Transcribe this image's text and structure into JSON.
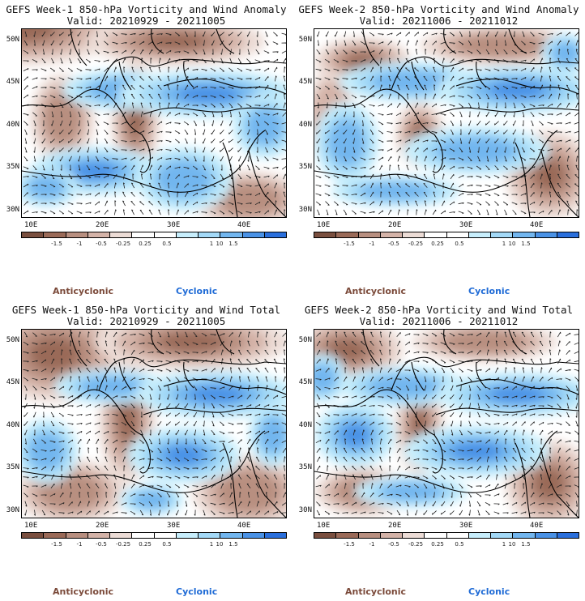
{
  "panels": [
    {
      "title": "GEFS Week-1 850-hPa Vorticity and Wind Anomaly",
      "valid": "Valid: 20210929 - 20211005"
    },
    {
      "title": "GEFS Week-2 850-hPa Vorticity and Wind Anomaly",
      "valid": "Valid: 20211006 - 20211012"
    },
    {
      "title": "GEFS Week-1 850-hPa Vorticity and Wind Total",
      "valid": "Valid: 20210929 - 20211005"
    },
    {
      "title": "GEFS Week-2 850-hPa Vorticity and Wind Total",
      "valid": "Valid: 20211006 - 20211012"
    }
  ],
  "lat_labels": [
    "50N",
    "45N",
    "40N",
    "35N",
    "30N"
  ],
  "lon_labels": [
    "10E",
    "20E",
    "30E",
    "40E"
  ],
  "colorbar": {
    "colors": [
      "#7a4f3f",
      "#9a6a58",
      "#b88f80",
      "#d4b3a8",
      "#ecdcd6",
      "#ffffff",
      "#ffffff",
      "#c7eefc",
      "#a3d9f7",
      "#72b6ef",
      "#4a92e6",
      "#2a6fdc"
    ],
    "labels": [
      "-1.5",
      "-1",
      "-0.5",
      "-0.25",
      "0.25",
      "0.5",
      "1",
      "1.5"
    ],
    "scale": "10"
  },
  "anticyclonic_label": "Anticyclonic",
  "cyclonic_label": "Cyclonic",
  "colors": {
    "anticyclonic": "#7b4a3a",
    "cyclonic": "#1f6bd6"
  }
}
